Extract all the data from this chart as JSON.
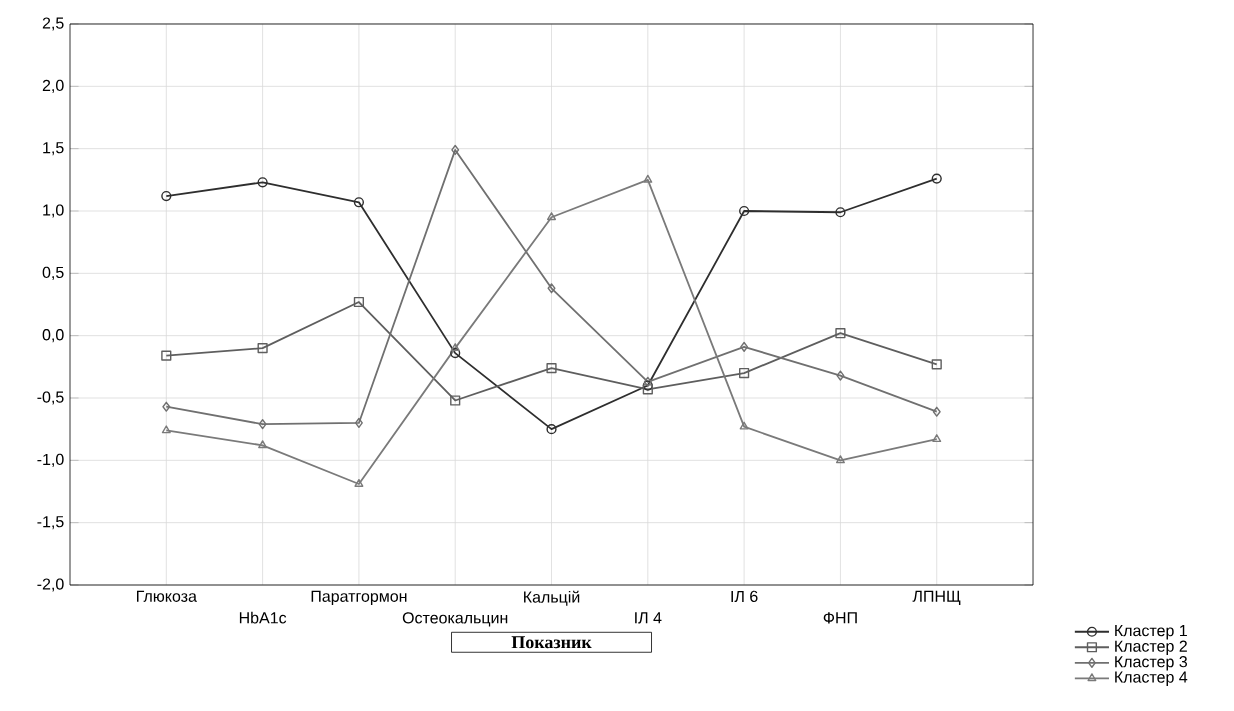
{
  "chart_data": {
    "type": "line",
    "xlabel": "Показник",
    "categories": [
      "Глюкоза",
      "HbA1c",
      "Паратгормон",
      "Остеокальцин",
      "Кальцій",
      "ІЛ 4",
      "ІЛ 6",
      "ФНП",
      "ЛПНЩ"
    ],
    "series": [
      {
        "name": "Кластер  1",
        "color": "#2e2e2e",
        "marker": "circle",
        "values": [
          1.12,
          1.23,
          1.07,
          -0.14,
          -0.75,
          -0.4,
          1.0,
          0.99,
          1.26
        ]
      },
      {
        "name": "Кластер  2",
        "color": "#5e5e5e",
        "marker": "square",
        "values": [
          -0.16,
          -0.1,
          0.27,
          -0.52,
          -0.26,
          -0.43,
          -0.3,
          0.02,
          -0.23
        ]
      },
      {
        "name": "Кластер  3",
        "color": "#707070",
        "marker": "diamond",
        "values": [
          -0.57,
          -0.71,
          -0.7,
          1.49,
          0.38,
          -0.37,
          -0.09,
          -0.32,
          -0.61
        ]
      },
      {
        "name": "Кластер  4",
        "color": "#7a7a7a",
        "marker": "triangle",
        "values": [
          -0.76,
          -0.88,
          -1.19,
          -0.1,
          0.95,
          1.25,
          -0.73,
          -1.0,
          -0.83
        ]
      }
    ],
    "ylim": [
      -2.0,
      2.5
    ],
    "yticks": [
      {
        "value": -2.0,
        "label": "-2,0"
      },
      {
        "value": -1.5,
        "label": "-1,5"
      },
      {
        "value": -1.0,
        "label": "-1,0"
      },
      {
        "value": -0.5,
        "label": "-0,5"
      },
      {
        "value": 0.0,
        "label": "0,0"
      },
      {
        "value": 0.5,
        "label": "0,5"
      },
      {
        "value": 1.0,
        "label": "1,0"
      },
      {
        "value": 1.5,
        "label": "1,5"
      },
      {
        "value": 2.0,
        "label": "2,0"
      },
      {
        "value": 2.5,
        "label": "2,5"
      }
    ],
    "grid": true,
    "legend": "bottom right",
    "line_style": "solid"
  }
}
